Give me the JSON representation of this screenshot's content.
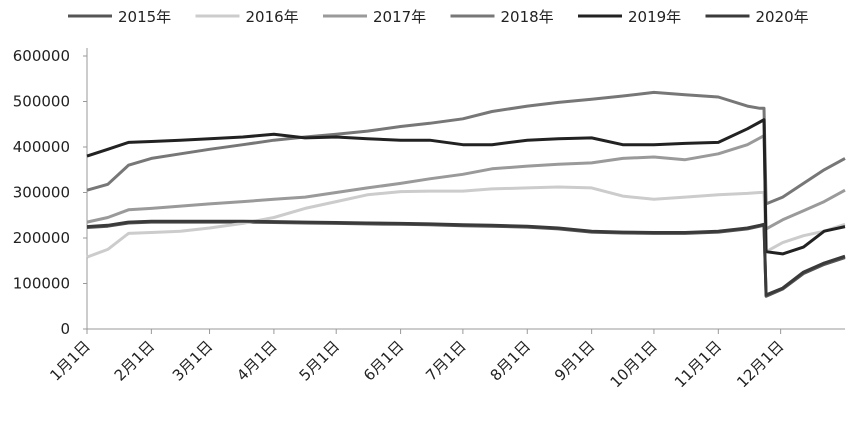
{
  "chart_data": {
    "type": "line",
    "x": [
      0,
      10,
      20,
      31,
      45,
      59,
      75,
      90,
      105,
      120,
      135,
      151,
      165,
      181,
      195,
      212,
      227,
      243,
      258,
      273,
      288,
      304,
      318,
      324,
      326,
      327,
      335,
      345,
      355,
      365
    ],
    "xlim": [
      0,
      365
    ],
    "xticks": [
      {
        "value": 0,
        "label": "1月1日"
      },
      {
        "value": 31,
        "label": "2月1日"
      },
      {
        "value": 59,
        "label": "3月1日"
      },
      {
        "value": 90,
        "label": "4月1日"
      },
      {
        "value": 120,
        "label": "5月1日"
      },
      {
        "value": 151,
        "label": "6月1日"
      },
      {
        "value": 181,
        "label": "7月1日"
      },
      {
        "value": 212,
        "label": "8月1日"
      },
      {
        "value": 243,
        "label": "9月1日"
      },
      {
        "value": 273,
        "label": "10月1日"
      },
      {
        "value": 304,
        "label": "11月1日"
      },
      {
        "value": 334,
        "label": "12月1日"
      }
    ],
    "ylim": [
      0,
      600000
    ],
    "yticks": [
      0,
      100000,
      200000,
      300000,
      400000,
      500000,
      600000
    ],
    "series": [
      {
        "name": "2015年",
        "color": "#555555",
        "values": [
          223000,
          226000,
          233000,
          235000,
          235000,
          235000,
          235000,
          234000,
          233000,
          232000,
          231000,
          230000,
          229000,
          227000,
          226000,
          224000,
          220000,
          213000,
          211000,
          210000,
          210000,
          213000,
          220000,
          226000,
          228000,
          72000,
          88000,
          122000,
          142000,
          157000
        ]
      },
      {
        "name": "2016年",
        "color": "#cccccc",
        "values": [
          158000,
          175000,
          210000,
          212000,
          215000,
          222000,
          232000,
          245000,
          265000,
          280000,
          295000,
          302000,
          303000,
          303000,
          308000,
          310000,
          312000,
          310000,
          292000,
          285000,
          290000,
          295000,
          298000,
          300000,
          300000,
          170000,
          190000,
          205000,
          215000,
          230000
        ]
      },
      {
        "name": "2017年",
        "color": "#9a9a9a",
        "values": [
          235000,
          245000,
          262000,
          265000,
          270000,
          275000,
          280000,
          285000,
          290000,
          300000,
          310000,
          320000,
          330000,
          340000,
          352000,
          358000,
          362000,
          365000,
          375000,
          378000,
          372000,
          385000,
          405000,
          420000,
          425000,
          220000,
          240000,
          260000,
          280000,
          305000
        ]
      },
      {
        "name": "2018年",
        "color": "#777777",
        "values": [
          305000,
          318000,
          360000,
          375000,
          385000,
          395000,
          405000,
          415000,
          422000,
          428000,
          435000,
          445000,
          452000,
          462000,
          478000,
          490000,
          498000,
          505000,
          512000,
          520000,
          515000,
          510000,
          490000,
          485000,
          485000,
          275000,
          290000,
          320000,
          350000,
          375000
        ]
      },
      {
        "name": "2019年",
        "color": "#222222",
        "values": [
          380000,
          395000,
          410000,
          412000,
          415000,
          418000,
          422000,
          428000,
          420000,
          422000,
          418000,
          415000,
          415000,
          405000,
          405000,
          415000,
          418000,
          420000,
          405000,
          405000,
          408000,
          410000,
          440000,
          455000,
          460000,
          170000,
          165000,
          180000,
          215000,
          225000
        ]
      },
      {
        "name": "2020年",
        "color": "#3a3a3a",
        "values": [
          225000,
          228000,
          235000,
          237000,
          237000,
          237000,
          237000,
          236000,
          235000,
          234000,
          233000,
          232000,
          231000,
          229000,
          228000,
          226000,
          222000,
          215000,
          213000,
          212000,
          212000,
          215000,
          222000,
          228000,
          230000,
          75000,
          90000,
          125000,
          145000,
          160000
        ]
      }
    ]
  }
}
